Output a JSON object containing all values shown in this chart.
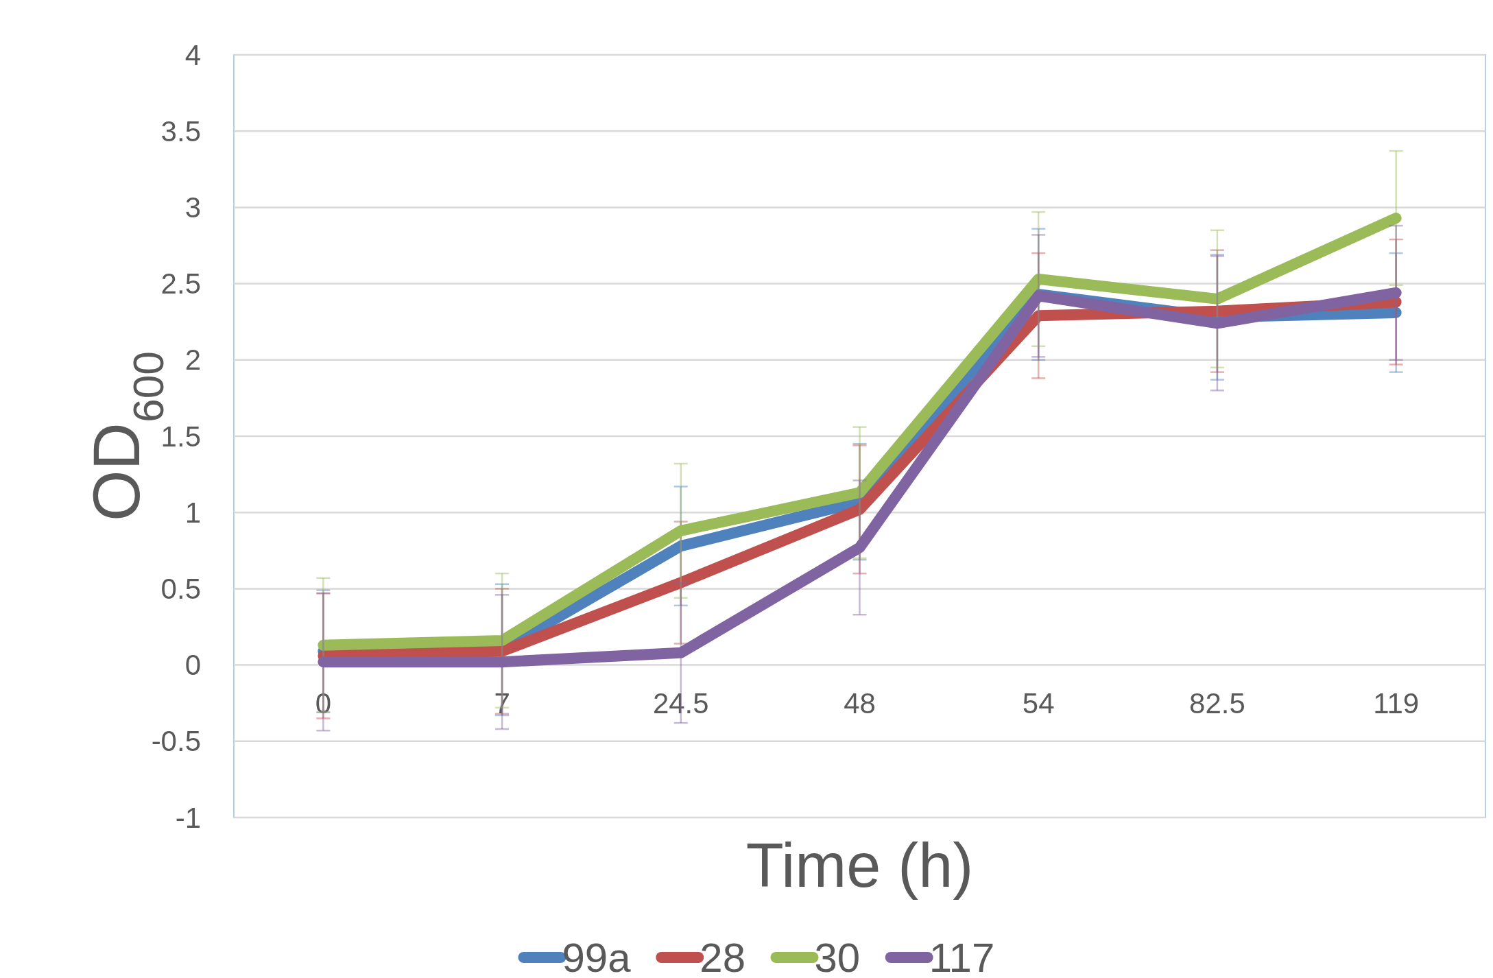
{
  "chart_data": {
    "type": "line",
    "xlabel": "Time (h)",
    "ylabel": "OD$_{600}$",
    "categories": [
      "0",
      "7",
      "24.5",
      "48",
      "54",
      "82.5",
      "119"
    ],
    "ylim": [
      -1,
      4
    ],
    "yticks": [
      -1,
      -0.5,
      0,
      0.5,
      1,
      1.5,
      2,
      2.5,
      3,
      3.5,
      4
    ],
    "grid": "y",
    "legend": "bottom",
    "marker": "none",
    "line_style": "solid",
    "series": [
      {
        "name": "99a",
        "color": "#4f81bd",
        "values": [
          0.09,
          0.1,
          0.78,
          1.07,
          2.43,
          2.28,
          2.31
        ],
        "errors": [
          0.4,
          0.43,
          0.39,
          0.38,
          0.43,
          0.41,
          0.39
        ]
      },
      {
        "name": "28",
        "color": "#c0504d",
        "values": [
          0.06,
          0.09,
          0.54,
          1.02,
          2.29,
          2.32,
          2.38
        ],
        "errors": [
          0.41,
          0.41,
          0.4,
          0.42,
          0.41,
          0.4,
          0.41
        ]
      },
      {
        "name": "30",
        "color": "#9bbb59",
        "values": [
          0.13,
          0.16,
          0.88,
          1.13,
          2.53,
          2.4,
          2.93
        ],
        "errors": [
          0.44,
          0.44,
          0.44,
          0.43,
          0.44,
          0.45,
          0.44
        ]
      },
      {
        "name": "117",
        "color": "#8064a2",
        "values": [
          0.02,
          0.02,
          0.08,
          0.77,
          2.42,
          2.24,
          2.44
        ],
        "errors": [
          0.45,
          0.44,
          0.46,
          0.44,
          0.4,
          0.44,
          0.44
        ]
      }
    ]
  }
}
